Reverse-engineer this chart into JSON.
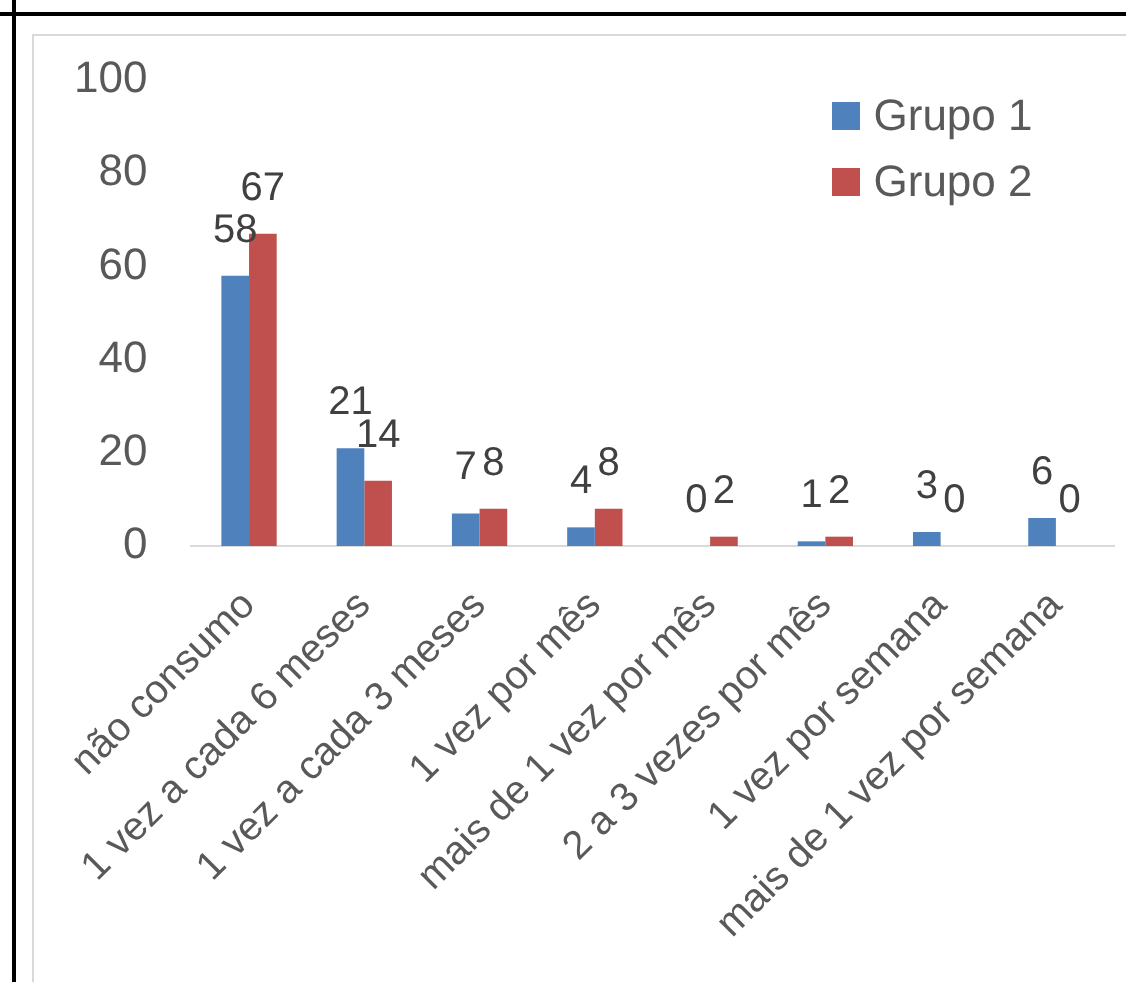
{
  "chart_data": {
    "type": "bar",
    "categories": [
      "não consumo",
      "1 vez a cada 6 meses",
      "1 vez a cada 3 meses",
      "1 vez por mês",
      "mais de 1 vez por mês",
      "2 a 3 vezes por mês",
      "1 vez por semana",
      "mais de 1 vez por semana"
    ],
    "series": [
      {
        "name": "Grupo 1",
        "color": "#4f81bd",
        "values": [
          58,
          21,
          7,
          4,
          0,
          1,
          3,
          6
        ]
      },
      {
        "name": "Grupo 2",
        "color": "#c0504d",
        "values": [
          67,
          14,
          8,
          8,
          2,
          2,
          0,
          0
        ]
      }
    ],
    "ylim": [
      0,
      100
    ],
    "yticks": [
      0,
      20,
      40,
      60,
      80,
      100
    ],
    "legend": "top right",
    "data_labels": true
  }
}
